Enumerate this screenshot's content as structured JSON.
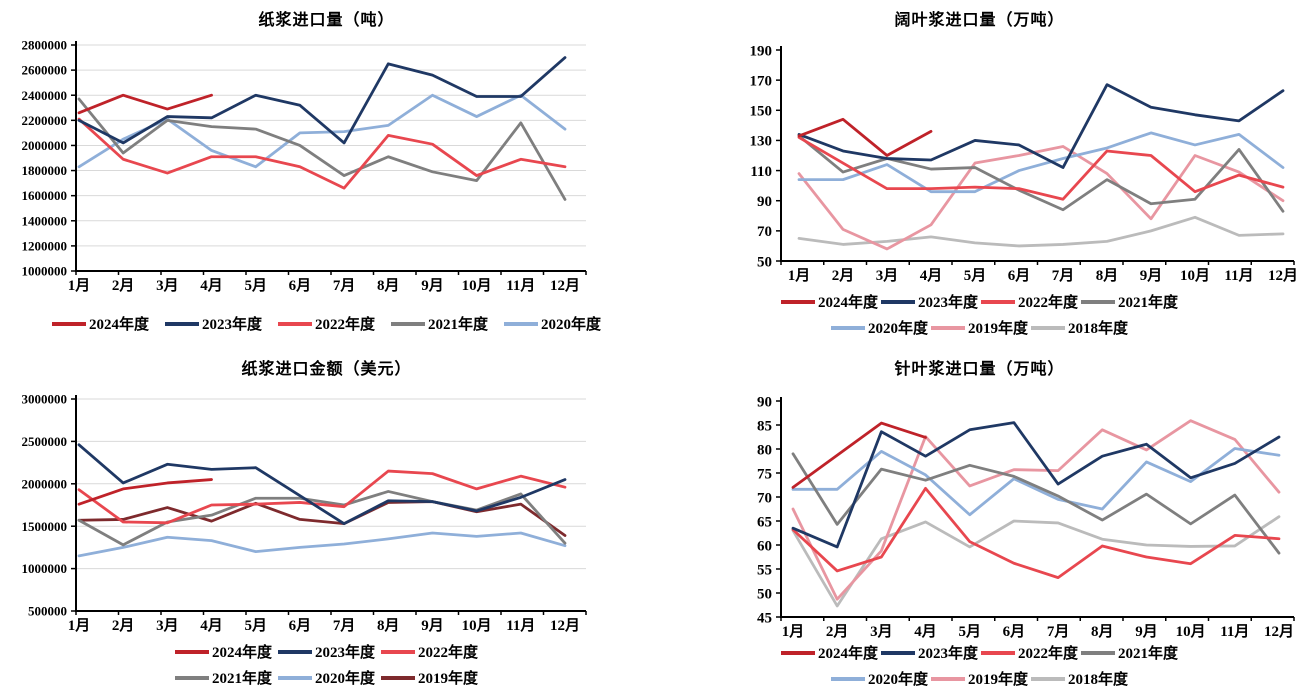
{
  "chart_data": [
    {
      "id": "pulp-import-volume",
      "type": "line",
      "title": "纸浆进口量（吨）",
      "xlabel": "",
      "ylabel": "",
      "ylim": [
        1000000,
        2800000
      ],
      "grid": true,
      "legend_position": "bottom",
      "y_ticks": [
        2800000,
        2600000,
        2400000,
        2200000,
        2000000,
        1800000,
        1600000,
        1400000,
        1200000,
        1000000
      ],
      "categories": [
        "1月",
        "2月",
        "3月",
        "4月",
        "5月",
        "6月",
        "7月",
        "8月",
        "9月",
        "10月",
        "11月",
        "12月"
      ],
      "series": [
        {
          "name": "2024年度",
          "color": "#BF2229",
          "values": [
            2260000,
            2400000,
            2290000,
            2400000
          ]
        },
        {
          "name": "2023年度",
          "color": "#1F3864",
          "values": [
            2200000,
            2020000,
            2230000,
            2220000,
            2400000,
            2320000,
            2020000,
            2650000,
            2560000,
            2390000,
            2390000,
            2700000
          ]
        },
        {
          "name": "2022年度",
          "color": "#E8474F",
          "values": [
            2210000,
            1890000,
            1780000,
            1910000,
            1910000,
            1830000,
            1660000,
            2080000,
            2010000,
            1760000,
            1890000,
            1830000
          ]
        },
        {
          "name": "2021年度",
          "color": "#7F7F7F",
          "values": [
            2370000,
            1940000,
            2200000,
            2150000,
            2130000,
            2000000,
            1760000,
            1910000,
            1790000,
            1720000,
            2180000,
            1570000
          ]
        },
        {
          "name": "2020年度",
          "color": "#8FAFD9",
          "values": [
            1830000,
            2050000,
            2210000,
            1960000,
            1830000,
            2100000,
            2110000,
            2160000,
            2400000,
            2230000,
            2400000,
            2130000
          ]
        }
      ],
      "legend_rows": [
        [
          "2024年度",
          "2023年度",
          "2022年度",
          "2021年度",
          "2020年度"
        ]
      ]
    },
    {
      "id": "hardwood-pulp-import-volume",
      "type": "line",
      "title": "阔叶浆进口量（万吨）",
      "xlabel": "",
      "ylabel": "",
      "ylim": [
        50,
        190
      ],
      "grid": false,
      "legend_position": "bottom",
      "y_ticks": [
        190,
        170,
        150,
        130,
        110,
        90,
        70,
        50
      ],
      "categories": [
        "1月",
        "2月",
        "3月",
        "4月",
        "5月",
        "6月",
        "7月",
        "8月",
        "9月",
        "10月",
        "11月",
        "12月"
      ],
      "series": [
        {
          "name": "2024年度",
          "color": "#BF2229",
          "values": [
            133,
            144,
            120,
            136
          ]
        },
        {
          "name": "2023年度",
          "color": "#1F3864",
          "values": [
            134,
            123,
            118,
            117,
            130,
            127,
            112,
            167,
            152,
            147,
            143,
            163
          ]
        },
        {
          "name": "2022年度",
          "color": "#E8474F",
          "values": [
            132,
            115,
            98,
            98,
            99,
            98,
            91,
            123,
            120,
            96,
            107,
            99
          ]
        },
        {
          "name": "2021年度",
          "color": "#7F7F7F",
          "values": [
            133,
            109,
            118,
            111,
            112,
            97,
            84,
            104,
            88,
            91,
            124,
            83
          ]
        },
        {
          "name": "2020年度",
          "color": "#8FAFD9",
          "values": [
            104,
            104,
            114,
            96,
            96,
            110,
            118,
            125,
            135,
            127,
            134,
            112
          ]
        },
        {
          "name": "2019年度",
          "color": "#E896A1",
          "values": [
            108,
            71,
            58,
            74,
            115,
            120,
            126,
            108,
            78,
            120,
            109,
            90
          ]
        },
        {
          "name": "2018年度",
          "color": "#BBBBBB",
          "values": [
            65,
            61,
            63,
            66,
            62,
            60,
            61,
            63,
            70,
            79,
            67,
            68
          ]
        }
      ],
      "legend_rows": [
        [
          "2024年度",
          "2023年度",
          "2022年度",
          "2021年度"
        ],
        [
          "2020年度",
          "2019年度",
          "2018年度"
        ]
      ]
    },
    {
      "id": "pulp-import-value",
      "type": "line",
      "title": "纸浆进口金额（美元）",
      "xlabel": "",
      "ylabel": "",
      "ylim": [
        500000,
        3000000
      ],
      "grid": true,
      "legend_position": "bottom",
      "y_ticks": [
        3000000,
        2500000,
        2000000,
        1500000,
        1000000,
        500000
      ],
      "categories": [
        "1月",
        "2月",
        "3月",
        "4月",
        "5月",
        "6月",
        "7月",
        "8月",
        "9月",
        "10月",
        "11月",
        "12月"
      ],
      "series": [
        {
          "name": "2024年度",
          "color": "#BF2229",
          "values": [
            1760000,
            1940000,
            2010000,
            2050000
          ]
        },
        {
          "name": "2023年度",
          "color": "#1F3864",
          "values": [
            2460000,
            2010000,
            2230000,
            2170000,
            2190000,
            1860000,
            1530000,
            1800000,
            1790000,
            1680000,
            1840000,
            2050000
          ]
        },
        {
          "name": "2022年度",
          "color": "#E8474F",
          "values": [
            1930000,
            1550000,
            1540000,
            1750000,
            1760000,
            1780000,
            1730000,
            2150000,
            2120000,
            1940000,
            2090000,
            1960000
          ]
        },
        {
          "name": "2021年度",
          "color": "#7F7F7F",
          "values": [
            1570000,
            1280000,
            1550000,
            1630000,
            1830000,
            1830000,
            1750000,
            1910000,
            1790000,
            1690000,
            1880000,
            1300000
          ]
        },
        {
          "name": "2020年度",
          "color": "#8FAFD9",
          "values": [
            1150000,
            1250000,
            1370000,
            1330000,
            1200000,
            1250000,
            1290000,
            1350000,
            1420000,
            1380000,
            1420000,
            1270000
          ]
        },
        {
          "name": "2019年度",
          "color": "#7E2A2D",
          "values": [
            1570000,
            1580000,
            1720000,
            1560000,
            1770000,
            1580000,
            1530000,
            1780000,
            1790000,
            1670000,
            1760000,
            1390000
          ]
        }
      ],
      "legend_rows": [
        [
          "2024年度",
          "2023年度",
          "2022年度"
        ],
        [
          "2021年度",
          "2020年度",
          "2019年度"
        ]
      ]
    },
    {
      "id": "softwood-pulp-import-volume",
      "type": "line",
      "title": "针叶浆进口量（万吨）",
      "xlabel": "",
      "ylabel": "",
      "ylim": [
        45,
        90
      ],
      "grid": false,
      "legend_position": "bottom",
      "y_ticks": [
        90,
        85,
        80,
        75,
        70,
        65,
        60,
        55,
        50,
        45
      ],
      "categories": [
        "1月",
        "2月",
        "3月",
        "4月",
        "5月",
        "6月",
        "7月",
        "8月",
        "9月",
        "10月",
        "11月",
        "12月"
      ],
      "series": [
        {
          "name": "2024年度",
          "color": "#BF2229",
          "values": [
            72,
            78.7,
            85.4,
            82.4
          ]
        },
        {
          "name": "2023年度",
          "color": "#1F3864",
          "values": [
            63.5,
            59.6,
            83.6,
            78.5,
            84,
            85.5,
            72.7,
            78.5,
            81,
            74,
            77,
            82.5
          ]
        },
        {
          "name": "2022年度",
          "color": "#E8474F",
          "values": [
            63.2,
            54.6,
            57.5,
            71.8,
            60.7,
            56.2,
            53.2,
            59.8,
            57.5,
            56.1,
            62,
            61.3
          ]
        },
        {
          "name": "2021年度",
          "color": "#7F7F7F",
          "values": [
            79,
            64.3,
            75.8,
            73.5,
            76.6,
            74.3,
            70.2,
            65.2,
            70.6,
            64.4,
            70.4,
            58.3
          ]
        },
        {
          "name": "2020年度",
          "color": "#8FAFD9",
          "values": [
            71.6,
            71.6,
            79.5,
            74.6,
            66.3,
            73.8,
            69.5,
            67.5,
            77.3,
            73.2,
            80.1,
            78.7
          ]
        },
        {
          "name": "2019年度",
          "color": "#E896A1",
          "values": [
            67.5,
            48.7,
            58.8,
            82.6,
            72.3,
            75.7,
            75.5,
            84,
            79.8,
            85.9,
            82,
            71
          ]
        },
        {
          "name": "2018年度",
          "color": "#BBBBBB",
          "values": [
            63,
            47.3,
            61.3,
            64.8,
            59.6,
            65,
            64.6,
            61.2,
            60,
            59.7,
            59.8,
            65.9
          ]
        }
      ],
      "legend_rows": [
        [
          "2024年度",
          "2023年度",
          "2022年度",
          "2021年度"
        ],
        [
          "2020年度",
          "2019年度",
          "2018年度"
        ]
      ]
    }
  ]
}
